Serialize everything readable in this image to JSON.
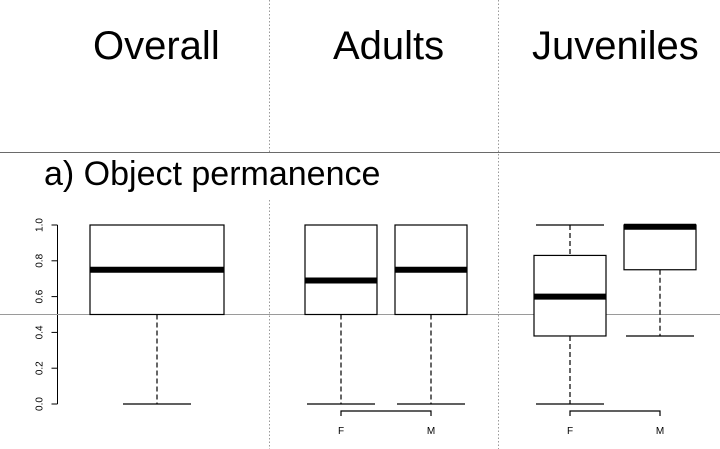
{
  "column_headers": [
    "Overall",
    "Adults",
    "Juveniles"
  ],
  "panel_title": "a) Object permanence",
  "chart_data": {
    "type": "boxplot",
    "title": "a) Object permanence",
    "xlabel": "",
    "ylabel": "",
    "ylim": [
      0,
      1
    ],
    "yticks": [
      "0.0",
      "0.2",
      "0.4",
      "0.6",
      "0.8",
      "1.0"
    ],
    "reference_line": 0.5,
    "grid": false,
    "groups": [
      {
        "name": "Overall",
        "boxes": [
          {
            "label": "",
            "whisker_low": 0.0,
            "q1": 0.5,
            "median": 0.75,
            "q3": 1.0,
            "whisker_high": 1.0
          }
        ],
        "bracket": false
      },
      {
        "name": "Adults",
        "boxes": [
          {
            "label": "F",
            "whisker_low": 0.0,
            "q1": 0.5,
            "median": 0.69,
            "q3": 1.0,
            "whisker_high": 1.0
          },
          {
            "label": "M",
            "whisker_low": 0.0,
            "q1": 0.5,
            "median": 0.75,
            "q3": 1.0,
            "whisker_high": 1.0
          }
        ],
        "bracket": true
      },
      {
        "name": "Juveniles",
        "boxes": [
          {
            "label": "F",
            "whisker_low": 0.0,
            "q1": 0.38,
            "median": 0.6,
            "q3": 0.83,
            "whisker_high": 1.0
          },
          {
            "label": "M",
            "whisker_low": 0.38,
            "q1": 0.75,
            "median": 0.99,
            "q3": 1.0,
            "whisker_high": 1.0
          }
        ],
        "bracket": true
      }
    ]
  }
}
